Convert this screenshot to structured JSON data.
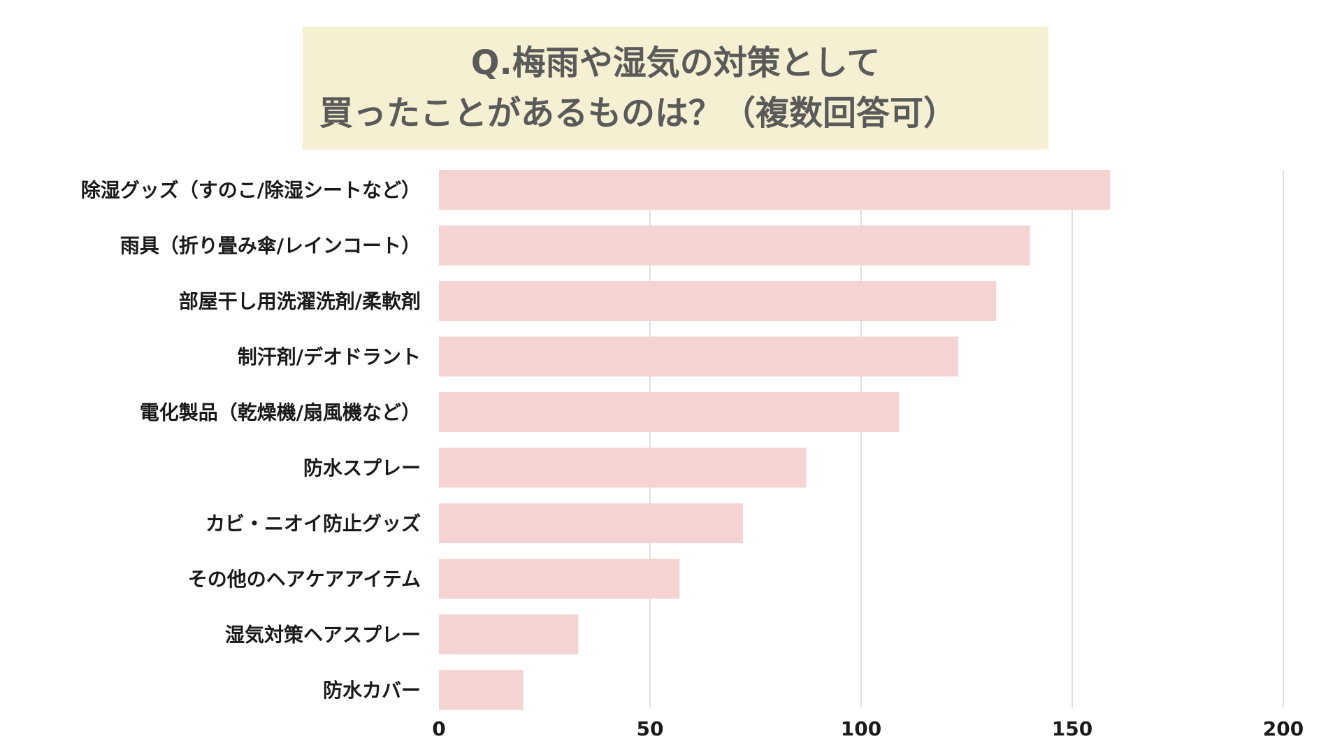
{
  "chart_data": {
    "type": "bar",
    "orientation": "horizontal",
    "title_lines": [
      "Q.梅雨や湿気の対策として",
      "買ったことがあるものは？（複数回答可）"
    ],
    "categories": [
      "除湿グッズ（すのこ/除湿シートなど）",
      "雨具（折り畳み傘/レインコート）",
      "部屋干し用洗濯洗剤/柔軟剤",
      "制汗剤/デオドラント",
      "電化製品（乾燥機/扇風機など）",
      "防水スプレー",
      "カビ・ニオイ防止グッズ",
      "その他のヘアケアアイテム",
      "湿気対策ヘアスプレー",
      "防水カバー"
    ],
    "values": [
      159,
      140,
      132,
      123,
      109,
      87,
      72,
      57,
      33,
      20
    ],
    "xlim": [
      0,
      200
    ],
    "xticks": [
      0,
      50,
      100,
      150,
      200
    ],
    "grid": true,
    "colors": {
      "bar": "#f5d3d2",
      "grid": "#d6d6d6",
      "title_bg": "#f6f0d2",
      "title_text": "#5a5a5a",
      "label_text": "#1a1a1a"
    }
  }
}
